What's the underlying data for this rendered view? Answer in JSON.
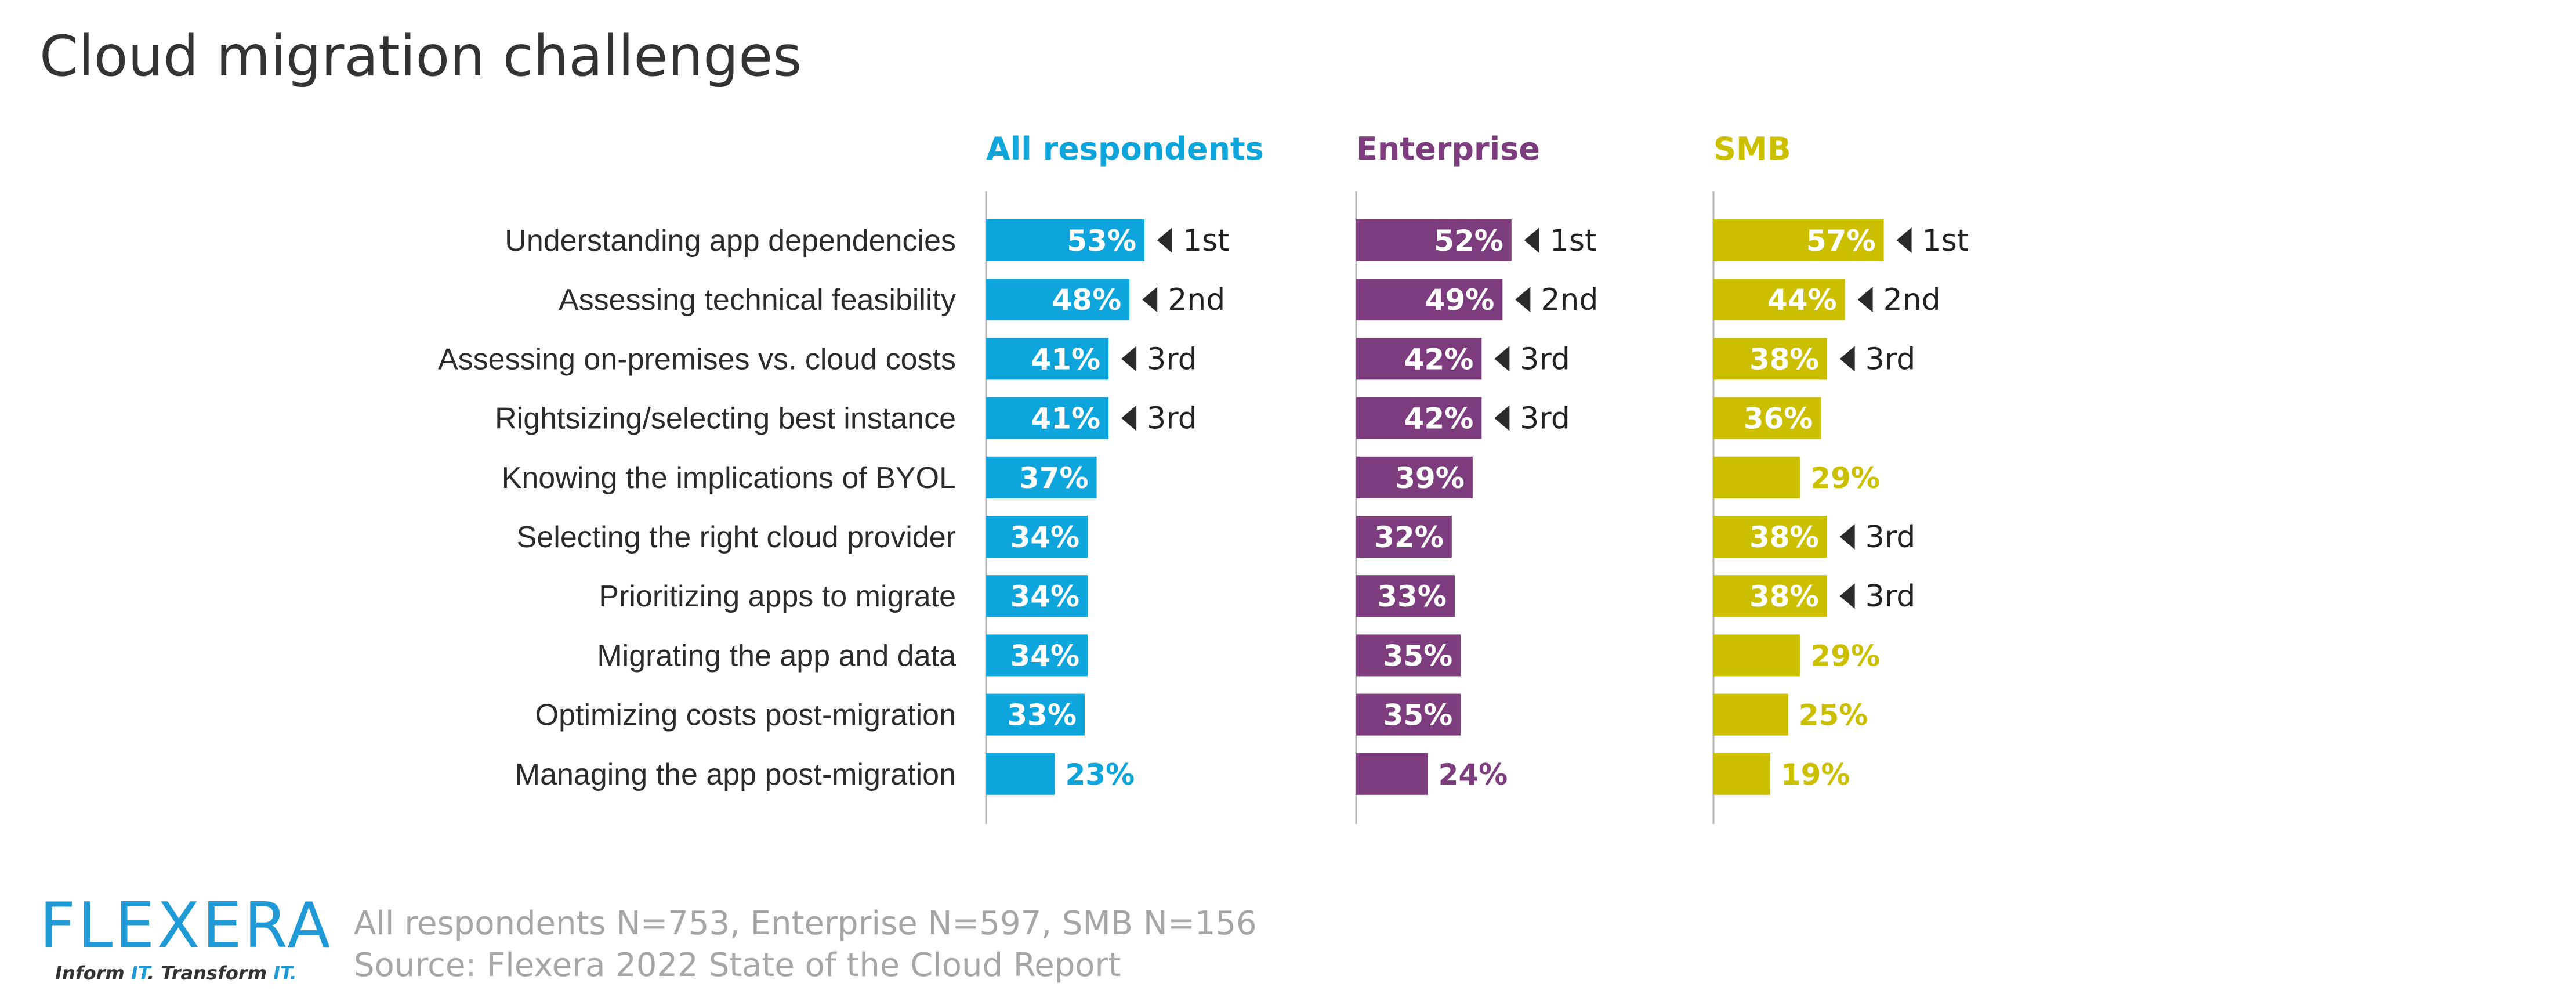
{
  "chart_data": {
    "type": "bar",
    "orientation": "horizontal",
    "title": "Cloud migration challenges",
    "categories": [
      "Understanding app dependencies",
      "Assessing technical feasibility",
      "Assessing on-premises vs. cloud costs",
      "Rightsizing/selecting best instance",
      "Knowing the implications of BYOL",
      "Selecting the right cloud provider",
      "Prioritizing apps to migrate",
      "Migrating the app and data",
      "Optimizing costs post-migration",
      "Managing the app post-migration"
    ],
    "series": [
      {
        "name": "All respondents",
        "color": "#0ea5dd",
        "values": [
          53,
          48,
          41,
          41,
          37,
          34,
          34,
          34,
          33,
          23
        ],
        "ranks": [
          "1st",
          "2nd",
          "3rd",
          "3rd",
          "",
          "",
          "",
          "",
          "",
          ""
        ]
      },
      {
        "name": "Enterprise",
        "color": "#7d3c7e",
        "values": [
          52,
          49,
          42,
          42,
          39,
          32,
          33,
          35,
          35,
          24
        ],
        "ranks": [
          "1st",
          "2nd",
          "3rd",
          "3rd",
          "",
          "",
          "",
          "",
          "",
          ""
        ]
      },
      {
        "name": "SMB",
        "color": "#cbbf00",
        "values": [
          57,
          44,
          38,
          36,
          29,
          38,
          38,
          29,
          25,
          19
        ],
        "ranks": [
          "1st",
          "2nd",
          "3rd",
          "",
          "",
          "3rd",
          "3rd",
          "",
          "",
          ""
        ]
      }
    ],
    "value_suffix": "%",
    "xlim": [
      0,
      100
    ]
  },
  "footer": {
    "sample": "All respondents N=753, Enterprise N=597, SMB N=156",
    "source": "Source: Flexera 2022 State of the Cloud Report"
  },
  "logo": {
    "name": "FLEXERA",
    "tagline_1": "Inform ",
    "tagline_2": "IT",
    "tagline_3": ". Transform ",
    "tagline_4": "IT",
    "tagline_5": "."
  }
}
